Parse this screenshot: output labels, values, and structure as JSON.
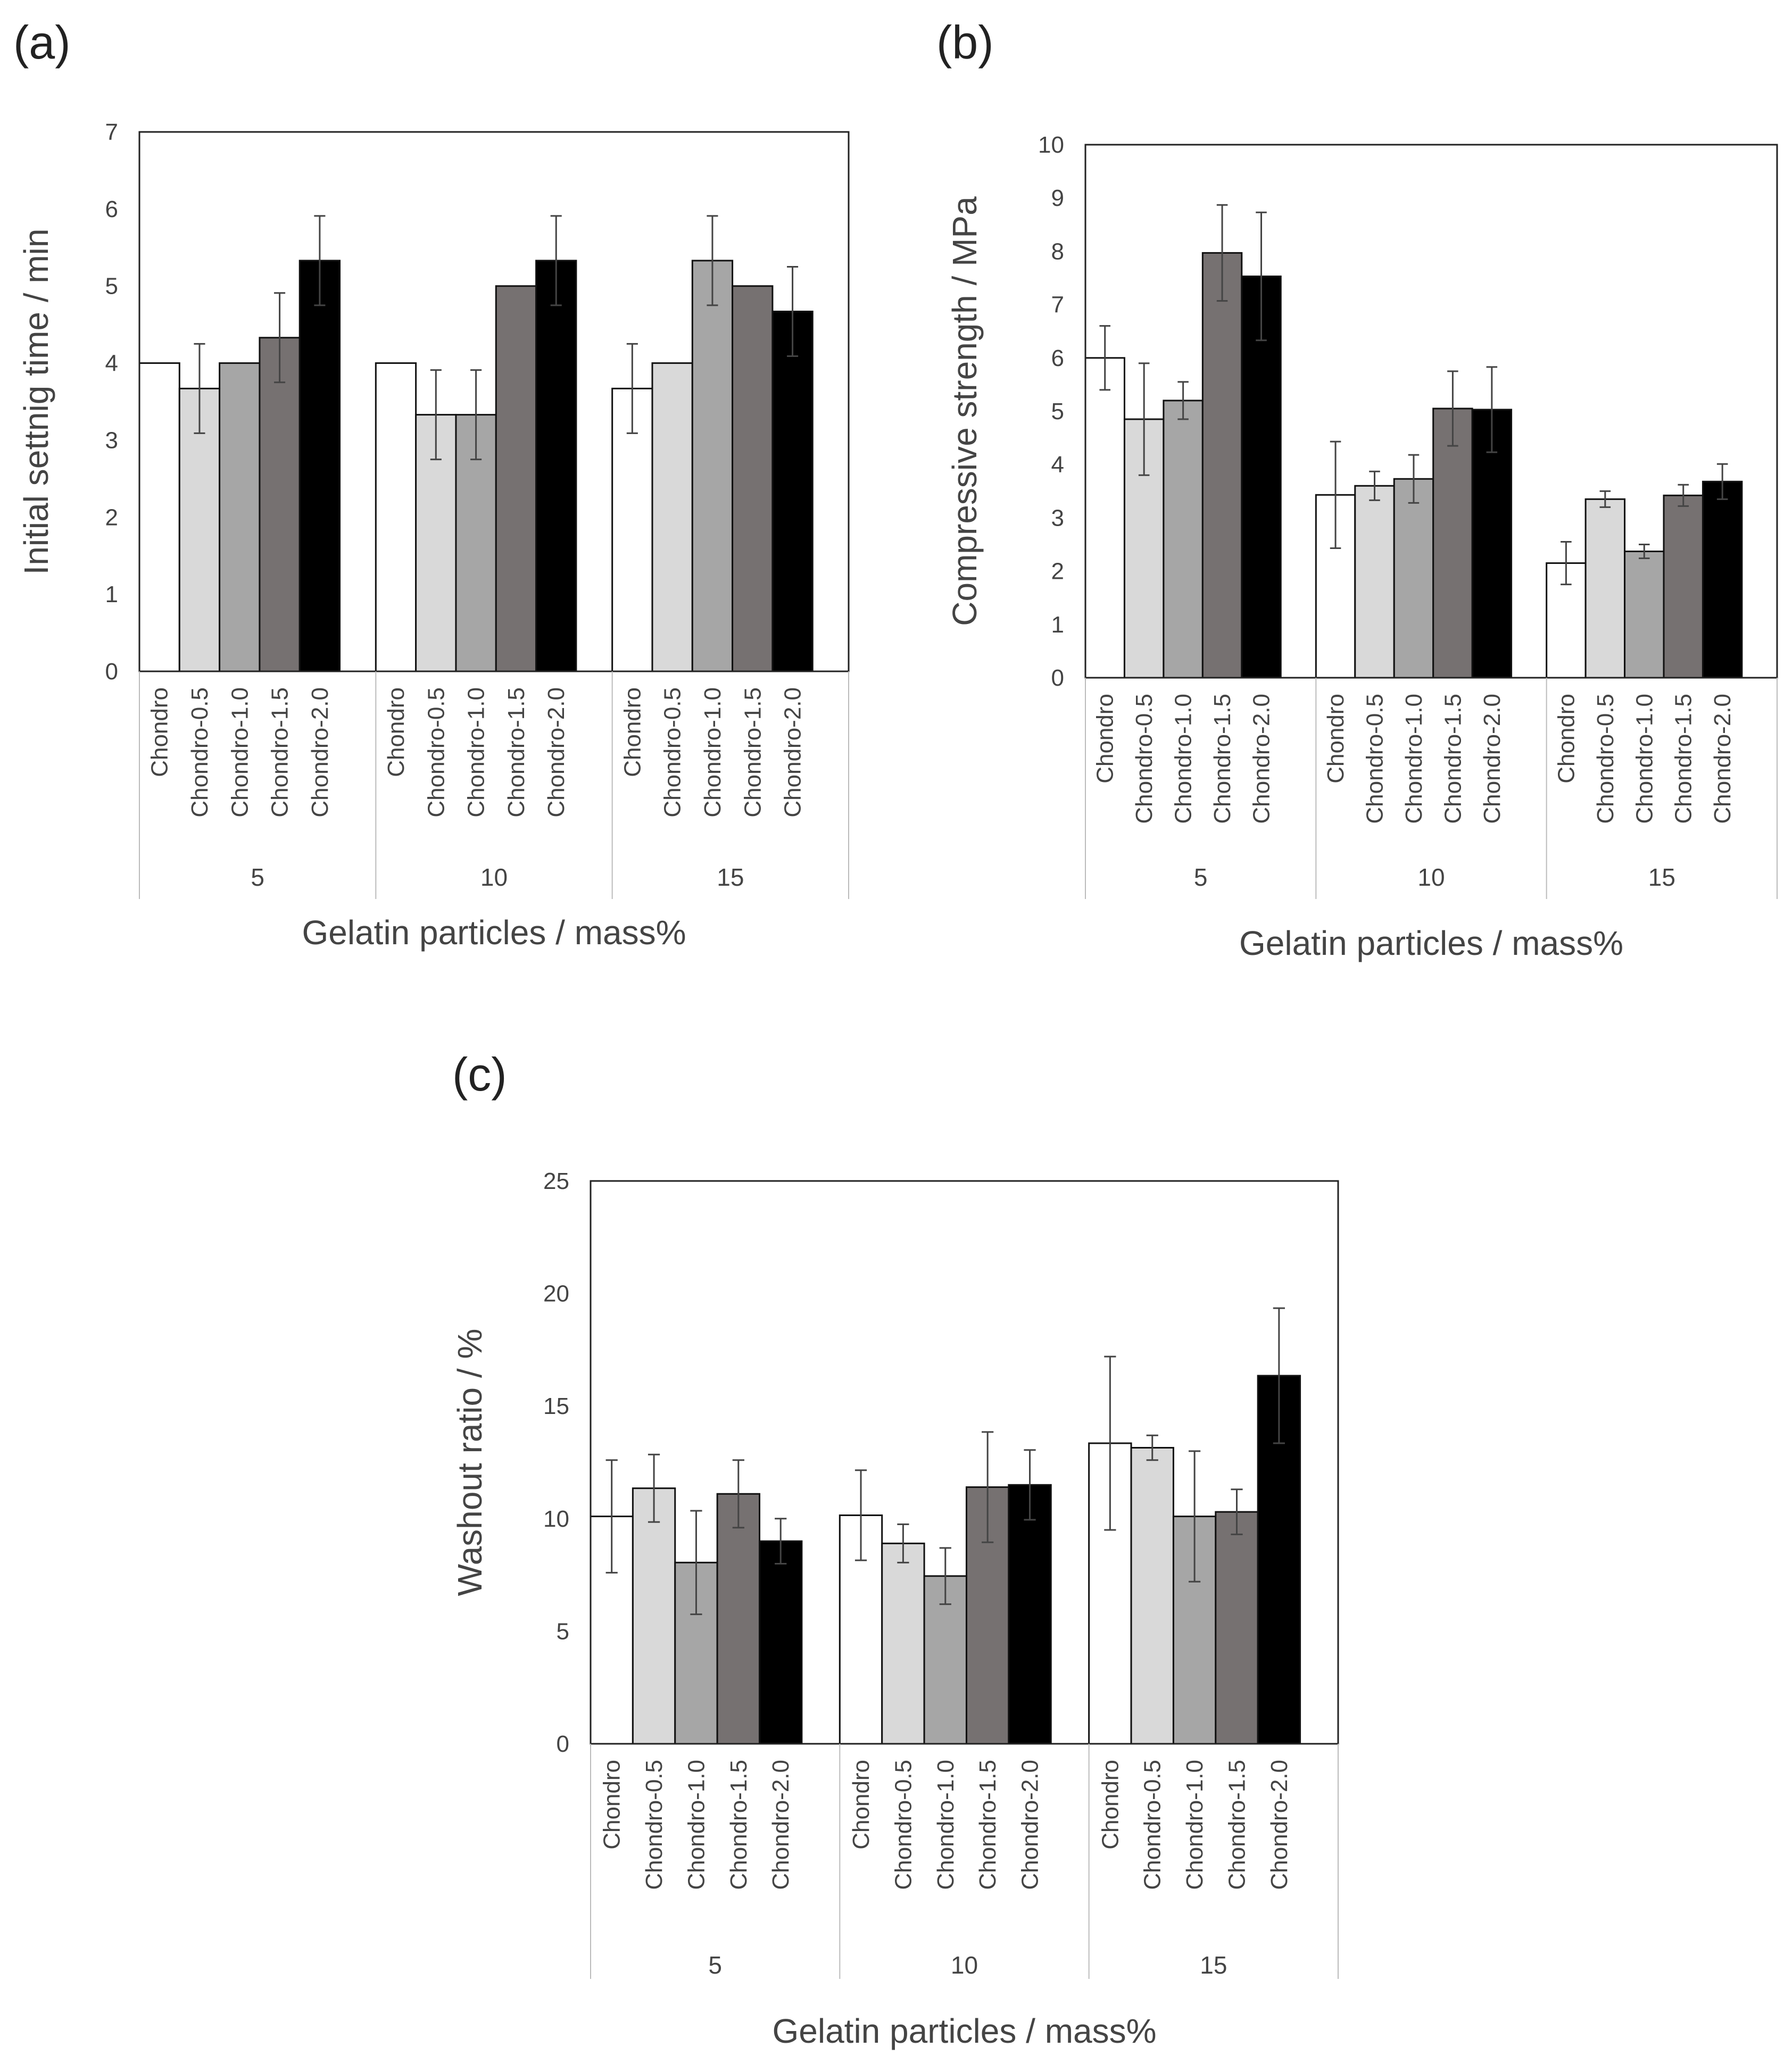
{
  "colors": {
    "Chondro": "#ffffff",
    "Chondro-0.5": "#d9d9d9",
    "Chondro-1.0": "#a6a6a6",
    "Chondro-1.5": "#767171",
    "Chondro-2.0": "#000000"
  },
  "chart_data": [
    {
      "panel": "(a)",
      "type": "bar",
      "title": "",
      "ylabel": "Initial settnig time / min",
      "xlabel": "Gelatin particles / mass%",
      "ylim": [
        0,
        7
      ],
      "yticks": [
        "0",
        "1",
        "2",
        "3",
        "4",
        "5",
        "6",
        "7"
      ],
      "groups": [
        "5",
        "10",
        "15"
      ],
      "categories": [
        "Chondro",
        "Chondro-0.5",
        "Chondro-1.0",
        "Chondro-1.5",
        "Chondro-2.0"
      ],
      "series": [
        {
          "group": "5",
          "values": [
            4.0,
            3.67,
            4.0,
            4.33,
            5.33
          ],
          "errors": [
            0,
            0.58,
            0,
            0.58,
            0.58
          ]
        },
        {
          "group": "10",
          "values": [
            4.0,
            3.33,
            3.33,
            5.0,
            5.33
          ],
          "errors": [
            0,
            0.58,
            0.58,
            0,
            0.58
          ]
        },
        {
          "group": "15",
          "values": [
            3.67,
            4.0,
            5.33,
            5.0,
            4.67
          ],
          "errors": [
            0.58,
            0,
            0.58,
            0,
            0.58
          ]
        }
      ]
    },
    {
      "panel": "(b)",
      "type": "bar",
      "title": "",
      "ylabel": "Compressive strength / MPa",
      "xlabel": "Gelatin particles / mass%",
      "ylim": [
        0,
        10
      ],
      "yticks": [
        "0",
        "1",
        "2",
        "3",
        "4",
        "5",
        "6",
        "7",
        "8",
        "9",
        "10"
      ],
      "groups": [
        "5",
        "10",
        "15"
      ],
      "categories": [
        "Chondro",
        "Chondro-0.5",
        "Chondro-1.0",
        "Chondro-1.5",
        "Chondro-2.0"
      ],
      "series": [
        {
          "group": "5",
          "values": [
            6.0,
            4.85,
            5.2,
            7.97,
            7.53
          ],
          "errors": [
            0.6,
            1.05,
            0.35,
            0.9,
            1.2
          ]
        },
        {
          "group": "10",
          "values": [
            3.43,
            3.6,
            3.73,
            5.05,
            5.03
          ],
          "errors": [
            1.0,
            0.27,
            0.45,
            0.7,
            0.8
          ]
        },
        {
          "group": "15",
          "values": [
            2.15,
            3.35,
            2.37,
            3.42,
            3.68
          ],
          "errors": [
            0.4,
            0.15,
            0.13,
            0.2,
            0.33
          ]
        }
      ]
    },
    {
      "panel": "(c)",
      "type": "bar",
      "title": "",
      "ylabel": "Washout ratio / %",
      "xlabel": "Gelatin particles / mass%",
      "ylim": [
        0,
        25
      ],
      "yticks": [
        "0",
        "5",
        "10",
        "15",
        "20",
        "25"
      ],
      "groups": [
        "5",
        "10",
        "15"
      ],
      "categories": [
        "Chondro",
        "Chondro-0.5",
        "Chondro-1.0",
        "Chondro-1.5",
        "Chondro-2.0"
      ],
      "series": [
        {
          "group": "5",
          "values": [
            10.1,
            11.35,
            8.05,
            11.1,
            9.0
          ],
          "errors": [
            2.5,
            1.5,
            2.3,
            1.5,
            1.0
          ]
        },
        {
          "group": "10",
          "values": [
            10.15,
            8.9,
            7.45,
            11.4,
            11.5
          ],
          "errors": [
            2.0,
            0.85,
            1.25,
            2.45,
            1.55
          ]
        },
        {
          "group": "15",
          "values": [
            13.35,
            13.15,
            10.1,
            10.3,
            16.35
          ],
          "errors": [
            3.85,
            0.55,
            2.9,
            1.0,
            3.0
          ]
        }
      ]
    }
  ]
}
